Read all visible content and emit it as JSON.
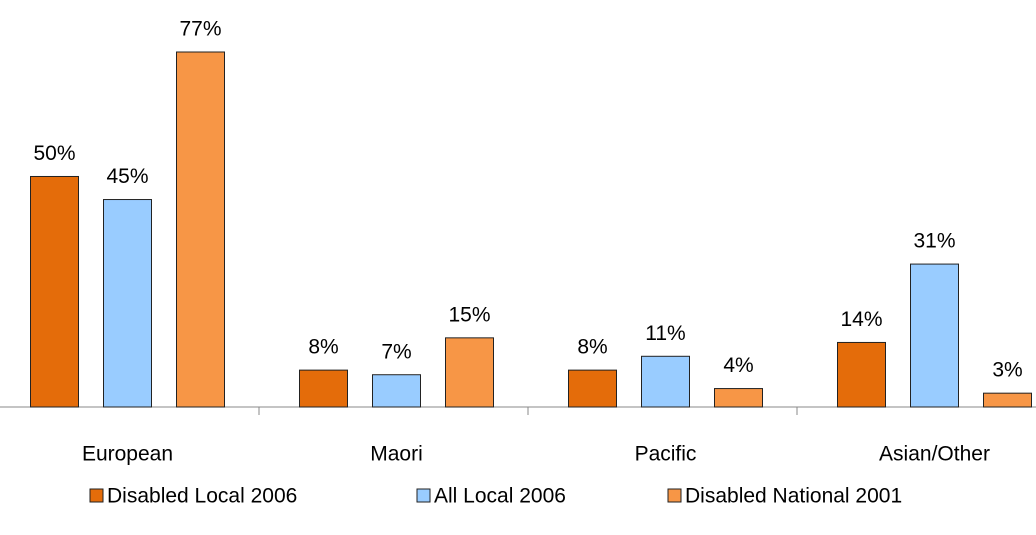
{
  "chart_data": {
    "type": "bar",
    "categories": [
      "European",
      "Maori",
      "Pacific",
      "Asian/Other"
    ],
    "series": [
      {
        "name": "Disabled Local 2006",
        "color": "#e46c0a",
        "values": [
          50,
          8,
          8,
          14
        ],
        "value_labels": [
          "50%",
          "8%",
          "8%",
          "14%"
        ]
      },
      {
        "name": "All Local 2006",
        "color": "#99ccff",
        "values": [
          45,
          7,
          11,
          31
        ],
        "value_labels": [
          "45%",
          "7%",
          "11%",
          "31%"
        ]
      },
      {
        "name": "Disabled National 2001",
        "color": "#f79646",
        "values": [
          77,
          15,
          4,
          3
        ],
        "value_labels": [
          "77%",
          "15%",
          "4%",
          "3%"
        ]
      }
    ]
  }
}
